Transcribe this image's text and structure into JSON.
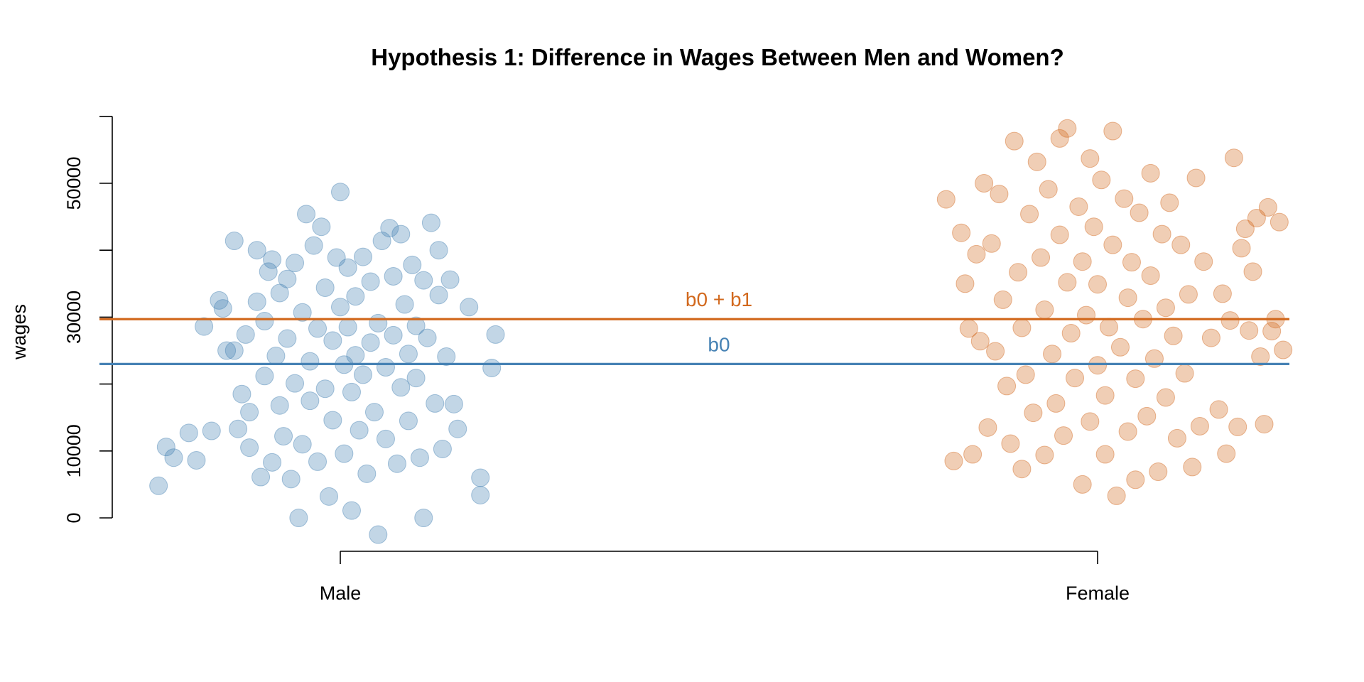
{
  "chart_data": {
    "type": "scatter",
    "title": "Hypothesis 1: Difference in Wages Between Men and Women?",
    "xlabel": "",
    "ylabel": "wages",
    "categories": [
      "Male",
      "Female"
    ],
    "y_ticks": [
      "0",
      "10000",
      "30000",
      "50000"
    ],
    "ylim": [
      -3000,
      60000
    ],
    "grid": false,
    "legend": "none",
    "series": [
      {
        "category": "Male",
        "color": "#4682B4",
        "points": [
          {
            "x": -0.24,
            "y": 4800
          },
          {
            "x": -0.23,
            "y": 10600
          },
          {
            "x": -0.22,
            "y": 9000
          },
          {
            "x": -0.2,
            "y": 12700
          },
          {
            "x": -0.19,
            "y": 8600
          },
          {
            "x": -0.17,
            "y": 13000
          },
          {
            "x": -0.16,
            "y": 32500
          },
          {
            "x": -0.155,
            "y": 31300
          },
          {
            "x": -0.15,
            "y": 25000
          },
          {
            "x": -0.18,
            "y": 28600
          },
          {
            "x": -0.14,
            "y": 41400
          },
          {
            "x": -0.14,
            "y": 25000
          },
          {
            "x": -0.135,
            "y": 13300
          },
          {
            "x": -0.13,
            "y": 18500
          },
          {
            "x": -0.125,
            "y": 27400
          },
          {
            "x": -0.12,
            "y": 15800
          },
          {
            "x": -0.12,
            "y": 10500
          },
          {
            "x": -0.11,
            "y": 40000
          },
          {
            "x": -0.11,
            "y": 32300
          },
          {
            "x": -0.105,
            "y": 6100
          },
          {
            "x": -0.1,
            "y": 21200
          },
          {
            "x": -0.1,
            "y": 29400
          },
          {
            "x": -0.095,
            "y": 36800
          },
          {
            "x": -0.09,
            "y": 38600
          },
          {
            "x": -0.09,
            "y": 8300
          },
          {
            "x": -0.085,
            "y": 24200
          },
          {
            "x": -0.08,
            "y": 16800
          },
          {
            "x": -0.08,
            "y": 33600
          },
          {
            "x": -0.075,
            "y": 12200
          },
          {
            "x": -0.07,
            "y": 35700
          },
          {
            "x": -0.07,
            "y": 26800
          },
          {
            "x": -0.065,
            "y": 5800
          },
          {
            "x": -0.06,
            "y": 20100
          },
          {
            "x": -0.06,
            "y": 38100
          },
          {
            "x": -0.055,
            "y": 0
          },
          {
            "x": -0.05,
            "y": 30700
          },
          {
            "x": -0.05,
            "y": 11000
          },
          {
            "x": -0.045,
            "y": 45400
          },
          {
            "x": -0.04,
            "y": 23400
          },
          {
            "x": -0.04,
            "y": 17500
          },
          {
            "x": -0.035,
            "y": 40700
          },
          {
            "x": -0.03,
            "y": 28300
          },
          {
            "x": -0.03,
            "y": 8400
          },
          {
            "x": -0.025,
            "y": 43500
          },
          {
            "x": -0.02,
            "y": 34400
          },
          {
            "x": -0.02,
            "y": 19300
          },
          {
            "x": -0.015,
            "y": 3200
          },
          {
            "x": -0.01,
            "y": 26500
          },
          {
            "x": -0.01,
            "y": 14600
          },
          {
            "x": -0.005,
            "y": 38900
          },
          {
            "x": 0,
            "y": 31500
          },
          {
            "x": 0,
            "y": 48700
          },
          {
            "x": 0.005,
            "y": 22900
          },
          {
            "x": 0.005,
            "y": 9600
          },
          {
            "x": 0.01,
            "y": 37400
          },
          {
            "x": 0.01,
            "y": 28500
          },
          {
            "x": 0.015,
            "y": 18800
          },
          {
            "x": 0.015,
            "y": 1100
          },
          {
            "x": 0.02,
            "y": 33100
          },
          {
            "x": 0.02,
            "y": 24300
          },
          {
            "x": 0.025,
            "y": 13100
          },
          {
            "x": 0.03,
            "y": 39000
          },
          {
            "x": 0.03,
            "y": 21400
          },
          {
            "x": 0.035,
            "y": 6600
          },
          {
            "x": 0.04,
            "y": 35300
          },
          {
            "x": 0.04,
            "y": 26200
          },
          {
            "x": 0.045,
            "y": 15800
          },
          {
            "x": 0.05,
            "y": -2500
          },
          {
            "x": 0.05,
            "y": 29100
          },
          {
            "x": 0.055,
            "y": 41400
          },
          {
            "x": 0.06,
            "y": 22500
          },
          {
            "x": 0.06,
            "y": 11800
          },
          {
            "x": 0.065,
            "y": 43300
          },
          {
            "x": 0.07,
            "y": 36100
          },
          {
            "x": 0.07,
            "y": 27300
          },
          {
            "x": 0.075,
            "y": 8100
          },
          {
            "x": 0.08,
            "y": 19500
          },
          {
            "x": 0.08,
            "y": 42400
          },
          {
            "x": 0.085,
            "y": 31900
          },
          {
            "x": 0.09,
            "y": 24500
          },
          {
            "x": 0.09,
            "y": 14500
          },
          {
            "x": 0.095,
            "y": 37800
          },
          {
            "x": 0.1,
            "y": 28700
          },
          {
            "x": 0.1,
            "y": 20900
          },
          {
            "x": 0.105,
            "y": 9000
          },
          {
            "x": 0.11,
            "y": 35500
          },
          {
            "x": 0.11,
            "y": 0
          },
          {
            "x": 0.115,
            "y": 26900
          },
          {
            "x": 0.12,
            "y": 44100
          },
          {
            "x": 0.125,
            "y": 17100
          },
          {
            "x": 0.13,
            "y": 40000
          },
          {
            "x": 0.13,
            "y": 33300
          },
          {
            "x": 0.135,
            "y": 10300
          },
          {
            "x": 0.14,
            "y": 24100
          },
          {
            "x": 0.145,
            "y": 35600
          },
          {
            "x": 0.15,
            "y": 17000
          },
          {
            "x": 0.155,
            "y": 13300
          },
          {
            "x": 0.17,
            "y": 31500
          },
          {
            "x": 0.185,
            "y": 6000
          },
          {
            "x": 0.185,
            "y": 3400
          },
          {
            "x": 0.2,
            "y": 22400
          },
          {
            "x": 0.205,
            "y": 27400
          }
        ]
      },
      {
        "category": "Female",
        "color": "#D2691E",
        "points": [
          {
            "x": -0.2,
            "y": 47600
          },
          {
            "x": -0.19,
            "y": 8500
          },
          {
            "x": -0.18,
            "y": 42600
          },
          {
            "x": -0.175,
            "y": 35000
          },
          {
            "x": -0.17,
            "y": 28300
          },
          {
            "x": -0.165,
            "y": 9500
          },
          {
            "x": -0.16,
            "y": 39400
          },
          {
            "x": -0.155,
            "y": 26400
          },
          {
            "x": -0.15,
            "y": 50000
          },
          {
            "x": -0.145,
            "y": 13500
          },
          {
            "x": -0.14,
            "y": 41000
          },
          {
            "x": -0.135,
            "y": 24900
          },
          {
            "x": -0.13,
            "y": 48400
          },
          {
            "x": -0.125,
            "y": 32600
          },
          {
            "x": -0.12,
            "y": 19700
          },
          {
            "x": -0.115,
            "y": 11100
          },
          {
            "x": -0.11,
            "y": 56300
          },
          {
            "x": -0.105,
            "y": 36700
          },
          {
            "x": -0.1,
            "y": 7300
          },
          {
            "x": -0.1,
            "y": 28400
          },
          {
            "x": -0.095,
            "y": 21400
          },
          {
            "x": -0.09,
            "y": 45400
          },
          {
            "x": -0.085,
            "y": 15700
          },
          {
            "x": -0.08,
            "y": 53200
          },
          {
            "x": -0.075,
            "y": 38900
          },
          {
            "x": -0.07,
            "y": 9400
          },
          {
            "x": -0.07,
            "y": 31100
          },
          {
            "x": -0.065,
            "y": 49100
          },
          {
            "x": -0.06,
            "y": 24500
          },
          {
            "x": -0.055,
            "y": 17100
          },
          {
            "x": -0.05,
            "y": 56700
          },
          {
            "x": -0.05,
            "y": 42300
          },
          {
            "x": -0.045,
            "y": 12300
          },
          {
            "x": -0.04,
            "y": 35200
          },
          {
            "x": -0.04,
            "y": 58200
          },
          {
            "x": -0.035,
            "y": 27600
          },
          {
            "x": -0.03,
            "y": 20900
          },
          {
            "x": -0.025,
            "y": 46500
          },
          {
            "x": -0.02,
            "y": 38300
          },
          {
            "x": -0.02,
            "y": 5000
          },
          {
            "x": -0.015,
            "y": 30300
          },
          {
            "x": -0.01,
            "y": 53700
          },
          {
            "x": -0.01,
            "y": 14400
          },
          {
            "x": -0.005,
            "y": 43500
          },
          {
            "x": 0,
            "y": 22800
          },
          {
            "x": 0,
            "y": 34900
          },
          {
            "x": 0.005,
            "y": 50500
          },
          {
            "x": 0.01,
            "y": 18300
          },
          {
            "x": 0.01,
            "y": 9500
          },
          {
            "x": 0.015,
            "y": 28500
          },
          {
            "x": 0.02,
            "y": 57800
          },
          {
            "x": 0.02,
            "y": 40800
          },
          {
            "x": 0.025,
            "y": 3300
          },
          {
            "x": 0.03,
            "y": 25500
          },
          {
            "x": 0.035,
            "y": 47700
          },
          {
            "x": 0.04,
            "y": 32900
          },
          {
            "x": 0.04,
            "y": 12900
          },
          {
            "x": 0.045,
            "y": 38200
          },
          {
            "x": 0.05,
            "y": 5700
          },
          {
            "x": 0.05,
            "y": 20800
          },
          {
            "x": 0.055,
            "y": 45600
          },
          {
            "x": 0.06,
            "y": 29700
          },
          {
            "x": 0.065,
            "y": 15200
          },
          {
            "x": 0.07,
            "y": 51500
          },
          {
            "x": 0.07,
            "y": 36200
          },
          {
            "x": 0.075,
            "y": 23800
          },
          {
            "x": 0.08,
            "y": 6900
          },
          {
            "x": 0.085,
            "y": 42400
          },
          {
            "x": 0.09,
            "y": 31400
          },
          {
            "x": 0.09,
            "y": 18000
          },
          {
            "x": 0.095,
            "y": 47100
          },
          {
            "x": 0.1,
            "y": 27200
          },
          {
            "x": 0.105,
            "y": 11900
          },
          {
            "x": 0.11,
            "y": 40800
          },
          {
            "x": 0.115,
            "y": 21600
          },
          {
            "x": 0.12,
            "y": 33400
          },
          {
            "x": 0.125,
            "y": 7600
          },
          {
            "x": 0.13,
            "y": 50800
          },
          {
            "x": 0.135,
            "y": 13700
          },
          {
            "x": 0.14,
            "y": 38300
          },
          {
            "x": 0.15,
            "y": 26900
          },
          {
            "x": 0.16,
            "y": 16200
          },
          {
            "x": 0.165,
            "y": 33500
          },
          {
            "x": 0.17,
            "y": 9600
          },
          {
            "x": 0.175,
            "y": 29500
          },
          {
            "x": 0.18,
            "y": 53800
          },
          {
            "x": 0.185,
            "y": 13600
          },
          {
            "x": 0.19,
            "y": 40300
          },
          {
            "x": 0.195,
            "y": 43200
          },
          {
            "x": 0.2,
            "y": 28000
          },
          {
            "x": 0.205,
            "y": 36800
          },
          {
            "x": 0.21,
            "y": 44800
          },
          {
            "x": 0.215,
            "y": 24100
          },
          {
            "x": 0.22,
            "y": 14000
          },
          {
            "x": 0.225,
            "y": 46400
          },
          {
            "x": 0.23,
            "y": 27900
          },
          {
            "x": 0.235,
            "y": 29700
          },
          {
            "x": 0.24,
            "y": 44200
          },
          {
            "x": 0.245,
            "y": 25100
          }
        ]
      }
    ],
    "lines": [
      {
        "label": "b0 + b1",
        "y": 29700,
        "color": "#D2691E"
      },
      {
        "label": "b0",
        "y": 23000,
        "color": "#4682B4"
      }
    ]
  }
}
